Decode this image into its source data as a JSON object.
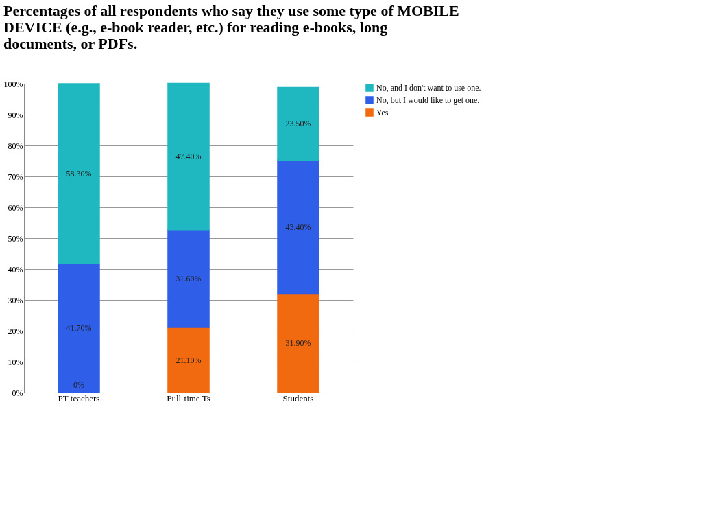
{
  "chart_data": {
    "type": "bar",
    "stacked": true,
    "title": "Percentages of all respondents who say they use some type of MOBILE DEVICE (e.g., e-book reader, etc.) for reading e-books, long documents, or PDFs.",
    "categories": [
      "PT teachers",
      "Full-time Ts",
      "Students"
    ],
    "series": [
      {
        "name": "Yes",
        "color": "#f26a10",
        "values": [
          0,
          21.1,
          31.9
        ],
        "value_labels": [
          "0%",
          "21.10%",
          "31.90%"
        ]
      },
      {
        "name": "No, but I would like to get one.",
        "color": "#2f5ee8",
        "values": [
          41.7,
          31.6,
          43.4
        ],
        "value_labels": [
          "41.70%",
          "31.60%",
          "43.40%"
        ]
      },
      {
        "name": "No, and I don't want to use one.",
        "color": "#20b8c0",
        "values": [
          58.3,
          47.4,
          23.5
        ],
        "value_labels": [
          "58.30%",
          "47.40%",
          "23.50%"
        ]
      }
    ],
    "ylim": [
      0,
      100
    ],
    "yticks": [
      {
        "value": 0,
        "label": "0%"
      },
      {
        "value": 10,
        "label": "10%"
      },
      {
        "value": 20,
        "label": "20%"
      },
      {
        "value": 30,
        "label": "30%"
      },
      {
        "value": 40,
        "label": "40%"
      },
      {
        "value": 50,
        "label": "50%"
      },
      {
        "value": 60,
        "label": "60%"
      },
      {
        "value": 70,
        "label": "70%"
      },
      {
        "value": 80,
        "label": "80%"
      },
      {
        "value": 90,
        "label": "90%"
      },
      {
        "value": 100,
        "label": "100%"
      }
    ],
    "grid": "y",
    "legend": "right"
  }
}
